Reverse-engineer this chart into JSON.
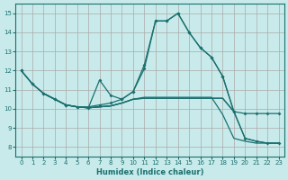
{
  "xlabel": "Humidex (Indice chaleur)",
  "bg_color": "#c8eaea",
  "line_color": "#1a7070",
  "xlim": [
    -0.5,
    23.5
  ],
  "ylim": [
    7.5,
    15.5
  ],
  "yticks": [
    8,
    9,
    10,
    11,
    12,
    13,
    14,
    15
  ],
  "xticks": [
    0,
    1,
    2,
    3,
    4,
    5,
    6,
    7,
    8,
    9,
    10,
    11,
    12,
    13,
    14,
    15,
    16,
    17,
    18,
    19,
    20,
    21,
    22,
    23
  ],
  "line_upper": {
    "x": [
      0,
      1,
      2,
      3,
      4,
      5,
      6,
      7,
      8,
      9,
      10,
      11,
      12,
      13,
      14,
      15,
      16,
      17,
      18,
      19,
      20,
      21,
      22,
      23
    ],
    "y": [
      12.0,
      11.3,
      10.8,
      10.5,
      10.2,
      10.1,
      10.1,
      10.2,
      10.3,
      10.5,
      10.9,
      12.3,
      14.6,
      14.6,
      15.0,
      14.0,
      13.2,
      12.7,
      11.7,
      9.85,
      9.75,
      9.75,
      9.75,
      9.75
    ]
  },
  "line_main": {
    "x": [
      0,
      1,
      2,
      3,
      4,
      5,
      6,
      7,
      8,
      9,
      10,
      11,
      12,
      13,
      14,
      15,
      16,
      17,
      18,
      19,
      20,
      21,
      22,
      23
    ],
    "y": [
      12.0,
      11.3,
      10.8,
      10.5,
      10.2,
      10.1,
      10.05,
      11.5,
      10.7,
      10.5,
      10.9,
      12.1,
      14.6,
      14.6,
      15.0,
      14.0,
      13.2,
      12.7,
      11.7,
      9.85,
      8.45,
      8.3,
      8.2,
      8.2
    ]
  },
  "line_lower": {
    "x": [
      0,
      1,
      2,
      3,
      4,
      5,
      6,
      7,
      8,
      9,
      10,
      11,
      12,
      13,
      14,
      15,
      16,
      17,
      18,
      19,
      20,
      21,
      22,
      23
    ],
    "y": [
      12.0,
      11.3,
      10.8,
      10.5,
      10.2,
      10.1,
      10.05,
      10.1,
      10.15,
      10.3,
      10.5,
      10.6,
      10.6,
      10.6,
      10.6,
      10.6,
      10.6,
      10.6,
      9.7,
      8.45,
      8.3,
      8.2,
      8.2,
      8.2
    ]
  },
  "line_mid1": {
    "x": [
      2,
      3,
      4,
      5,
      6,
      7,
      8,
      9,
      10,
      11,
      12,
      13,
      14,
      15,
      16,
      17,
      18,
      19,
      20,
      21,
      22,
      23
    ],
    "y": [
      10.8,
      10.5,
      10.2,
      10.1,
      10.05,
      10.1,
      10.15,
      10.3,
      10.5,
      10.55,
      10.55,
      10.55,
      10.55,
      10.55,
      10.55,
      10.55,
      10.55,
      9.85,
      8.45,
      8.3,
      8.2,
      8.2
    ]
  },
  "line_mid2": {
    "x": [
      2,
      3,
      4,
      5,
      6,
      7,
      8,
      9,
      10,
      11,
      12,
      13,
      14,
      15,
      16,
      17,
      18,
      19
    ],
    "y": [
      10.8,
      10.5,
      10.2,
      10.1,
      10.05,
      10.1,
      10.15,
      10.3,
      10.5,
      10.55,
      10.55,
      10.55,
      10.55,
      10.55,
      10.55,
      10.55,
      10.55,
      9.85
    ]
  }
}
